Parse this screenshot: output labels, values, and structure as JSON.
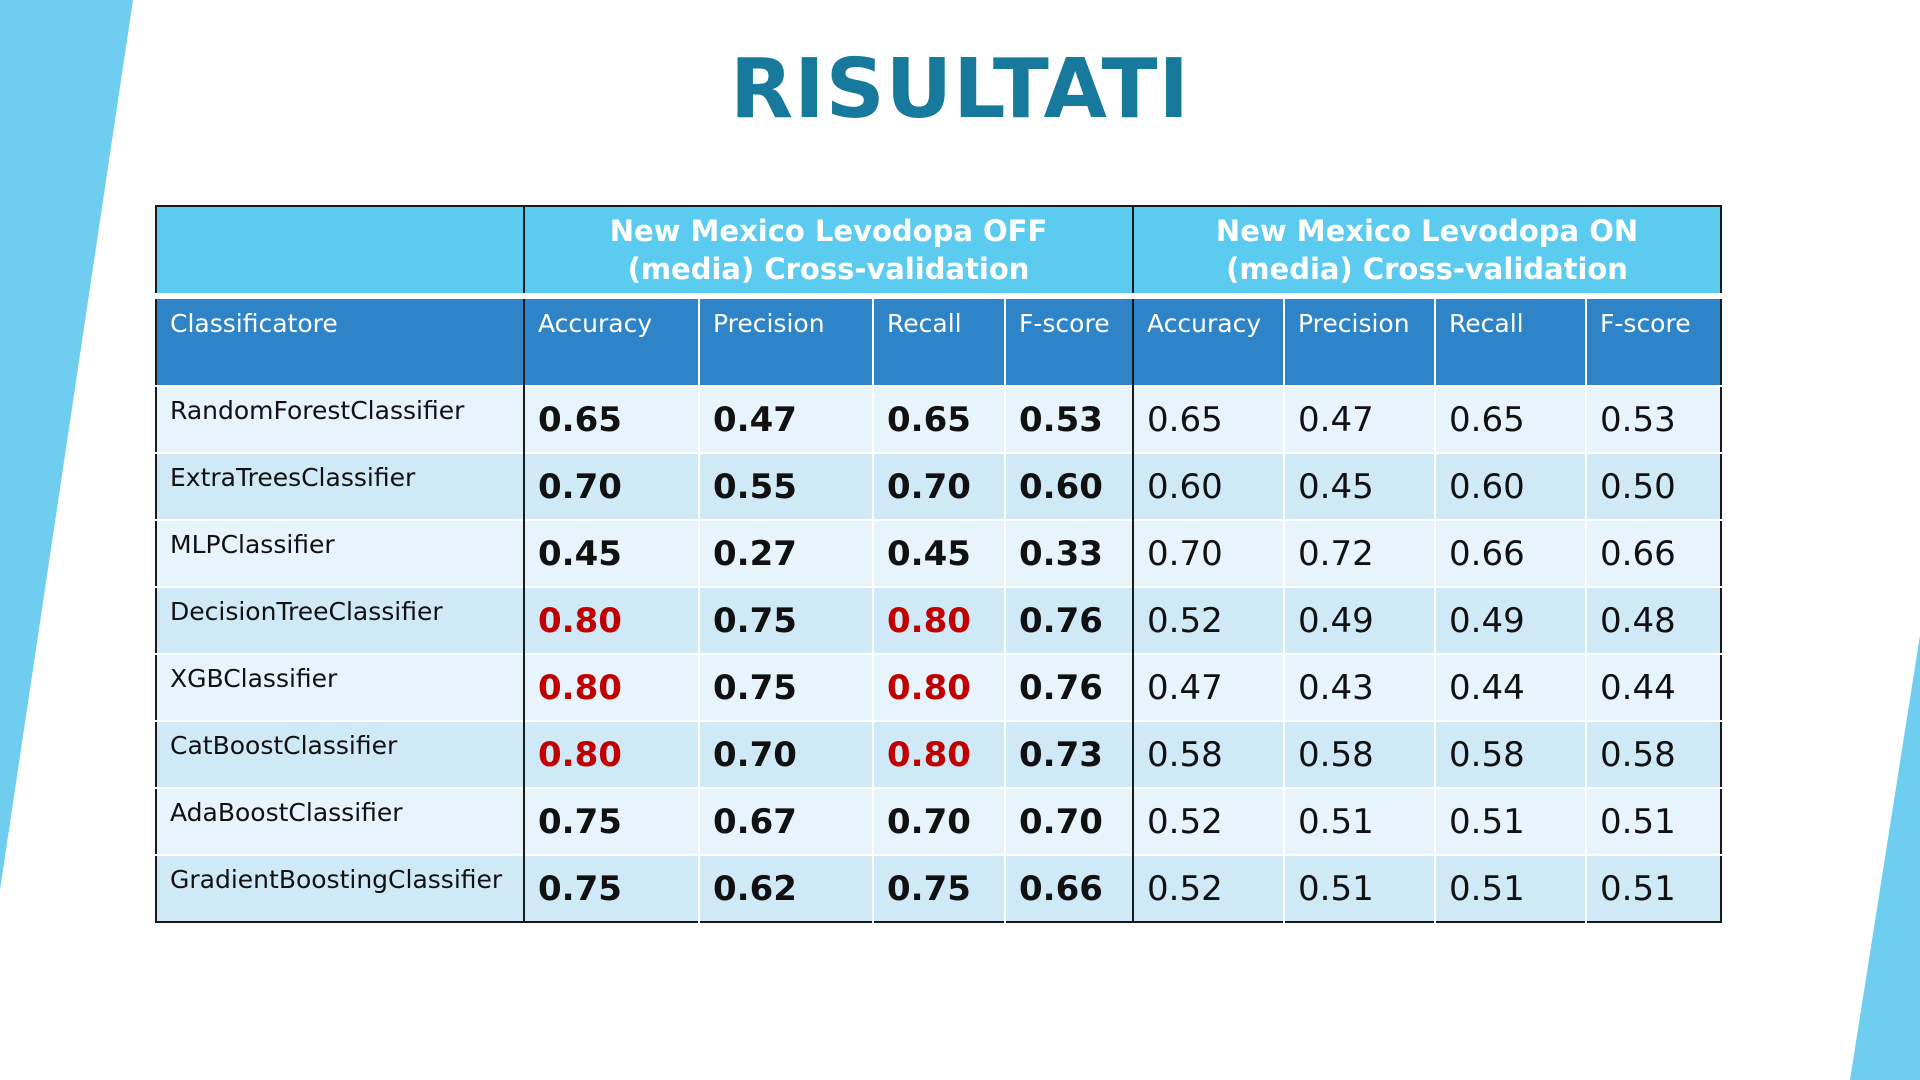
{
  "title": "RISULTATI",
  "accent_color": "#177a9c",
  "highlight_color": "#c00000",
  "table": {
    "groups": [
      {
        "line1": "New Mexico Levodopa OFF",
        "line2": "(media) Cross-validation"
      },
      {
        "line1": "New Mexico Levodopa ON",
        "line2": "(media) Cross-validation"
      }
    ],
    "columns": [
      "Classificatore",
      "Accuracy",
      "Precision",
      "Recall",
      "F-score",
      "Accuracy",
      "Precision",
      "Recall",
      "F-score"
    ],
    "rows": [
      {
        "name": "RandomForestClassifier",
        "off": [
          "0.65",
          "0.47",
          "0.65",
          "0.53"
        ],
        "on": [
          "0.65",
          "0.47",
          "0.65",
          "0.53"
        ]
      },
      {
        "name": "ExtraTreesClassifier",
        "off": [
          "0.70",
          "0.55",
          "0.70",
          "0.60"
        ],
        "on": [
          "0.60",
          "0.45",
          "0.60",
          "0.50"
        ]
      },
      {
        "name": "MLPClassifier",
        "off": [
          "0.45",
          "0.27",
          "0.45",
          "0.33"
        ],
        "on": [
          "0.70",
          "0.72",
          "0.66",
          "0.66"
        ]
      },
      {
        "name": "DecisionTreeClassifier",
        "off": [
          "0.80",
          "0.75",
          "0.80",
          "0.76"
        ],
        "on": [
          "0.52",
          "0.49",
          "0.49",
          "0.48"
        ]
      },
      {
        "name": "XGBClassifier",
        "off": [
          "0.80",
          "0.75",
          "0.80",
          "0.76"
        ],
        "on": [
          "0.47",
          "0.43",
          "0.44",
          "0.44"
        ]
      },
      {
        "name": "CatBoostClassifier",
        "off": [
          "0.80",
          "0.70",
          "0.80",
          "0.73"
        ],
        "on": [
          "0.58",
          "0.58",
          "0.58",
          "0.58"
        ]
      },
      {
        "name": "AdaBoostClassifier",
        "off": [
          "0.75",
          "0.67",
          "0.70",
          "0.70"
        ],
        "on": [
          "0.52",
          "0.51",
          "0.51",
          "0.51"
        ]
      },
      {
        "name": "GradientBoostingClassifier",
        "off": [
          "0.75",
          "0.62",
          "0.75",
          "0.66"
        ],
        "on": [
          "0.52",
          "0.51",
          "0.51",
          "0.51"
        ]
      }
    ],
    "highlighted_off": [
      [
        false,
        false,
        false,
        false
      ],
      [
        false,
        false,
        false,
        false
      ],
      [
        false,
        false,
        false,
        false
      ],
      [
        true,
        false,
        true,
        false
      ],
      [
        true,
        false,
        true,
        false
      ],
      [
        true,
        false,
        true,
        false
      ],
      [
        false,
        false,
        false,
        false
      ],
      [
        false,
        false,
        false,
        false
      ]
    ]
  }
}
